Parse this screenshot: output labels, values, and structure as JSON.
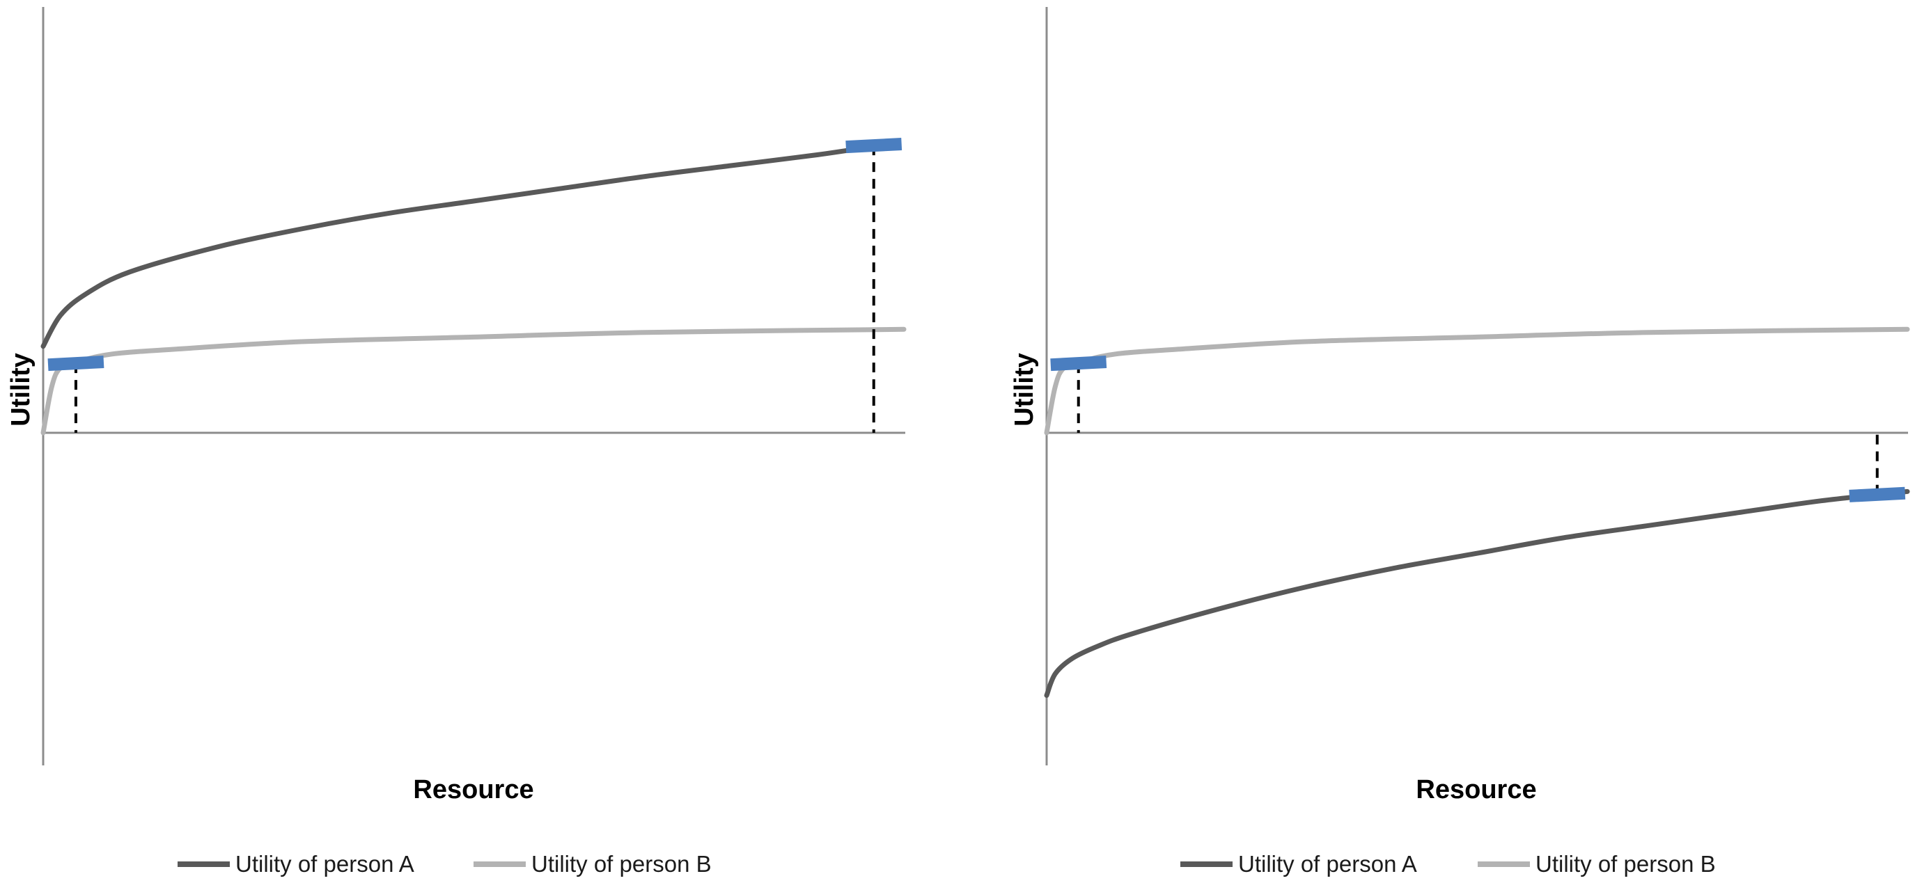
{
  "colors": {
    "person_a": "#595959",
    "person_b": "#b3b3b3",
    "marker": "#4a7ec0",
    "axis": "#8c8c8c",
    "dashed": "#000000"
  },
  "chart_data": [
    {
      "type": "line",
      "xlabel": "Resource",
      "ylabel": "Utility",
      "grid": false,
      "legend_position": "bottom",
      "xlim": [
        0,
        100
      ],
      "ylim": [
        -100,
        100
      ],
      "series": [
        {
          "name": "Utility of person A",
          "color": "#595959",
          "x": [
            0,
            2,
            5,
            10,
            20,
            30,
            40,
            50,
            60,
            70,
            80,
            90,
            96
          ],
          "y": [
            28,
            38,
            45,
            52,
            60,
            66,
            71,
            75,
            79,
            83,
            86.5,
            90,
            92.5
          ]
        },
        {
          "name": "Utility of person B",
          "color": "#b3b3b3",
          "x": [
            0,
            1,
            2,
            4,
            8,
            15,
            30,
            50,
            70,
            100
          ],
          "y": [
            0,
            15,
            21,
            23,
            25.5,
            27,
            29.5,
            31,
            32.5,
            33.5
          ]
        }
      ],
      "markers": [
        {
          "series": "Utility of person B",
          "x": 3.8,
          "y": 22.5
        },
        {
          "series": "Utility of person A",
          "x": 96.5,
          "y": 93
        }
      ]
    },
    {
      "type": "line",
      "xlabel": "Resource",
      "ylabel": "Utility",
      "grid": false,
      "legend_position": "bottom",
      "xlim": [
        0,
        100
      ],
      "ylim": [
        -100,
        100
      ],
      "series": [
        {
          "name": "Utility of person A",
          "color": "#595959",
          "x": [
            0,
            1,
            3,
            6,
            10,
            20,
            30,
            40,
            50,
            60,
            70,
            80,
            90,
            100
          ],
          "y": [
            -85,
            -78,
            -73,
            -69,
            -65,
            -57,
            -50,
            -44,
            -39,
            -34,
            -30,
            -26,
            -22,
            -19
          ]
        },
        {
          "name": "Utility of person B",
          "color": "#b3b3b3",
          "x": [
            0,
            1,
            2,
            4,
            8,
            15,
            30,
            50,
            70,
            100
          ],
          "y": [
            0,
            15,
            21,
            23,
            25.5,
            27,
            29.5,
            31,
            32.5,
            33.5
          ]
        }
      ],
      "markers": [
        {
          "series": "Utility of person B",
          "x": 3.7,
          "y": 22.5
        },
        {
          "series": "Utility of person A",
          "x": 96.5,
          "y": -20
        }
      ]
    }
  ]
}
